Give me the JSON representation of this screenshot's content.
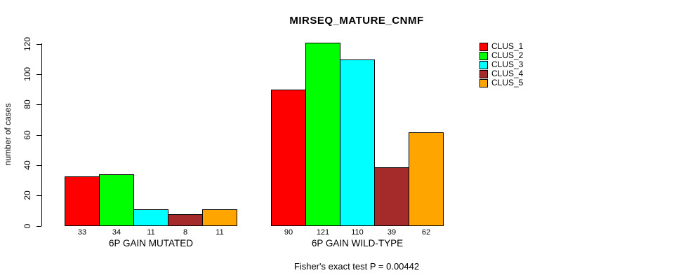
{
  "chart_data": {
    "type": "bar",
    "title": "MIRSEQ_MATURE_CNMF",
    "ylabel": "number of cases",
    "xlabel": "",
    "categories": [
      "6P GAIN MUTATED",
      "6P GAIN WILD-TYPE"
    ],
    "series": [
      {
        "name": "CLUS_1",
        "color": "#FF0000",
        "values": [
          33,
          90
        ]
      },
      {
        "name": "CLUS_2",
        "color": "#00FF00",
        "values": [
          34,
          121
        ]
      },
      {
        "name": "CLUS_3",
        "color": "#00FFFF",
        "values": [
          11,
          110
        ]
      },
      {
        "name": "CLUS_4",
        "color": "#A52A2A",
        "values": [
          8,
          39
        ]
      },
      {
        "name": "CLUS_5",
        "color": "#FFA500",
        "values": [
          11,
          62
        ]
      }
    ],
    "ylim": [
      0,
      120
    ],
    "yticks": [
      0,
      20,
      40,
      60,
      80,
      100,
      120
    ],
    "bar_value_labels": true,
    "legend_position": "right",
    "grid": false,
    "axis_color": "#000000",
    "bar_border_color": "#000000",
    "background": "#FFFFFF"
  },
  "footer": {
    "note": "Fisher's exact test P = 0.00442"
  }
}
